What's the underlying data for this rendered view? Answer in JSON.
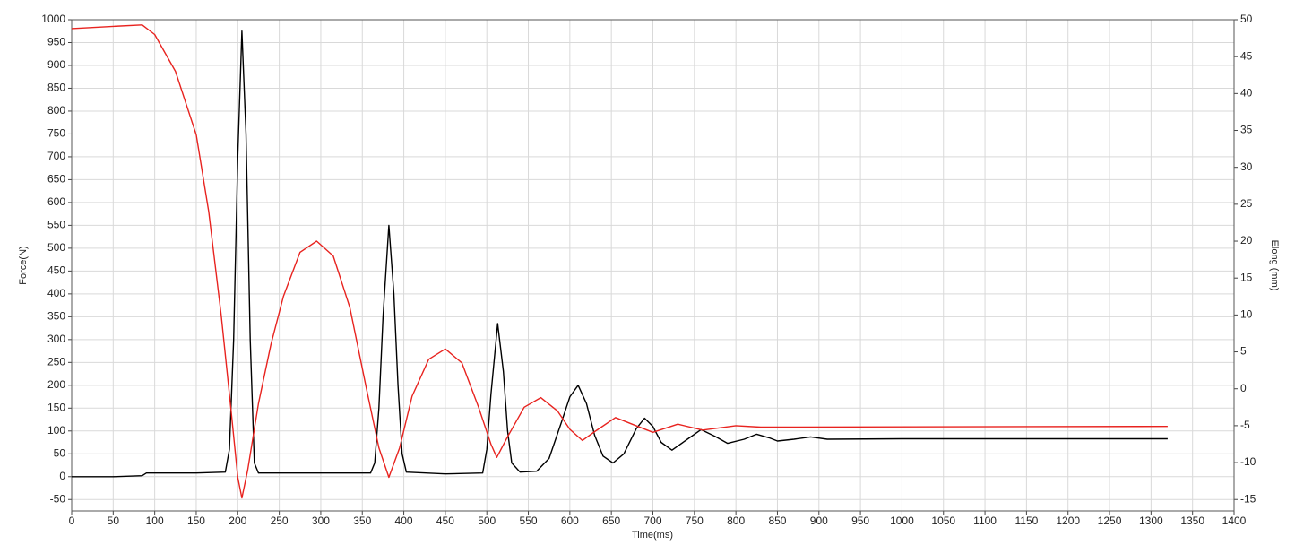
{
  "chart_data": {
    "type": "line",
    "x_label": "Time(ms)",
    "y_label": "Force(N)",
    "y2_label": "Elong (mm)",
    "xlim": [
      0,
      1400
    ],
    "ylim": [
      -75,
      1000
    ],
    "y2lim": [
      -16.55,
      50
    ],
    "xticks": [
      0,
      50,
      100,
      150,
      200,
      250,
      300,
      350,
      400,
      450,
      500,
      550,
      600,
      650,
      700,
      750,
      800,
      850,
      900,
      950,
      1000,
      1050,
      1100,
      1150,
      1200,
      1250,
      1300,
      1350,
      1400
    ],
    "yticks": [
      -50,
      0,
      50,
      100,
      150,
      200,
      250,
      300,
      350,
      400,
      450,
      500,
      550,
      600,
      650,
      700,
      750,
      800,
      850,
      900,
      950,
      1000
    ],
    "y2ticks": [
      -15,
      -10,
      -5,
      0,
      5,
      10,
      15,
      20,
      25,
      30,
      35,
      40,
      45,
      50
    ],
    "grid": true,
    "series": [
      {
        "name": "Force",
        "color": "#000000",
        "axis": "y",
        "x": [
          0,
          50,
          85,
          90,
          150,
          185,
          190,
          195,
          200,
          205,
          210,
          215,
          220,
          225,
          300,
          360,
          365,
          370,
          375,
          382,
          388,
          393,
          398,
          403,
          450,
          495,
          500,
          505,
          513,
          520,
          525,
          530,
          540,
          560,
          575,
          590,
          600,
          610,
          620,
          630,
          640,
          652,
          665,
          680,
          690,
          700,
          710,
          723,
          740,
          758,
          775,
          790,
          810,
          825,
          840,
          850,
          870,
          890,
          910,
          1000,
          1320
        ],
        "values": [
          0,
          0,
          2,
          8,
          8,
          10,
          60,
          300,
          700,
          975,
          750,
          300,
          30,
          8,
          8,
          8,
          30,
          150,
          350,
          550,
          400,
          200,
          50,
          10,
          6,
          8,
          60,
          180,
          335,
          230,
          100,
          30,
          10,
          12,
          40,
          120,
          175,
          200,
          160,
          90,
          45,
          30,
          50,
          105,
          128,
          110,
          75,
          58,
          80,
          103,
          88,
          73,
          82,
          93,
          85,
          78,
          82,
          87,
          82,
          83,
          83
        ]
      },
      {
        "name": "Elong",
        "color": "#e8231f",
        "axis": "y2",
        "x": [
          0,
          50,
          85,
          100,
          125,
          150,
          165,
          180,
          192,
          200,
          205,
          212,
          225,
          240,
          255,
          275,
          295,
          315,
          335,
          355,
          370,
          382,
          395,
          410,
          430,
          450,
          470,
          490,
          505,
          512,
          525,
          545,
          565,
          585,
          600,
          615,
          630,
          655,
          675,
          700,
          730,
          760,
          800,
          830,
          1320
        ],
        "values": [
          48.8,
          49.1,
          49.3,
          48.0,
          43,
          34.4,
          24,
          10,
          -3,
          -12,
          -14.8,
          -11,
          -2,
          6,
          12.5,
          18.5,
          20,
          18,
          11,
          0,
          -8,
          -12,
          -8,
          -1,
          4,
          5.4,
          3.5,
          -2.5,
          -7.5,
          -9.3,
          -6.5,
          -2.5,
          -1.2,
          -3,
          -5.5,
          -7,
          -5.8,
          -3.9,
          -4.8,
          -5.9,
          -4.8,
          -5.6,
          -5.0,
          -5.2,
          -5.1
        ]
      }
    ]
  }
}
